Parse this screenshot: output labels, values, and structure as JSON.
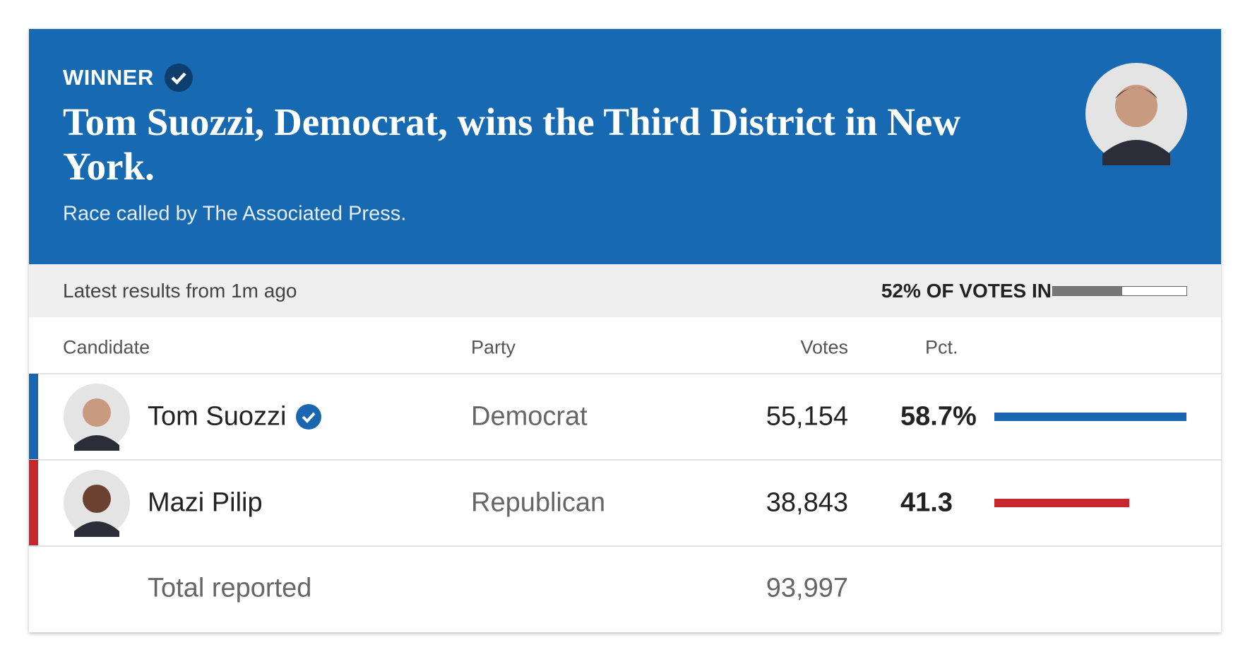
{
  "header": {
    "label": "WINNER",
    "title": "Tom Suozzi, Democrat, wins the Third District in New York.",
    "subtitle": "Race called by The Associated Press."
  },
  "status": {
    "updated": "Latest results from 1m ago",
    "reporting": {
      "value": 52,
      "label": "52% OF VOTES IN"
    }
  },
  "table": {
    "columns": [
      "Candidate",
      "Party",
      "Votes",
      "Pct."
    ],
    "rows": [
      {
        "candidate": "Tom Suozzi",
        "party": "Democrat",
        "votes": "55,154",
        "pct": {
          "value": 58.7,
          "label": "58.7%"
        },
        "color": "#1a67b1"
      },
      {
        "candidate": "Mazi Pilip",
        "party": "Republican",
        "votes": "38,843",
        "pct": {
          "value": 41.3,
          "label": "41.3"
        },
        "color": "#c8262f"
      }
    ],
    "total": {
      "label": "Total reported",
      "votes": "93,997"
    }
  }
}
